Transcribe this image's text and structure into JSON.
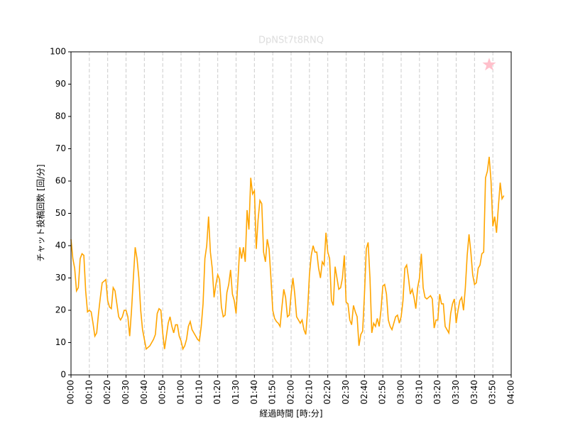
{
  "chart_data": {
    "type": "line",
    "title": "DpNSt7t8RNQ",
    "xlabel": "経過時間 [時:分]",
    "ylabel": "チャット投稿回数 [回/分]",
    "color": "orange",
    "grid": "x",
    "x": [
      0,
      1,
      2,
      3,
      4,
      5,
      6,
      7,
      8,
      9,
      10,
      11,
      12,
      13,
      14,
      15,
      16,
      17,
      18,
      19,
      20,
      21,
      22,
      23,
      24,
      25,
      26,
      27,
      28,
      29,
      30,
      31,
      32,
      33,
      34,
      35,
      36,
      37,
      38,
      39,
      40,
      41,
      42,
      43,
      44,
      45,
      46,
      47,
      48,
      49,
      50,
      51,
      52,
      53,
      54,
      55,
      56,
      57,
      58,
      59,
      60,
      61,
      62,
      63,
      64,
      65,
      66,
      67,
      68,
      69,
      70,
      71,
      72,
      73,
      74,
      75,
      76,
      77,
      78,
      79,
      80,
      81,
      82,
      83,
      84,
      85,
      86,
      87,
      88,
      89,
      90,
      91,
      92,
      93,
      94,
      95,
      96,
      97,
      98,
      99,
      100,
      101,
      102,
      103,
      104,
      105,
      106,
      107,
      108,
      109,
      110,
      111,
      112,
      113,
      114,
      115,
      116,
      117,
      118,
      119,
      120,
      121,
      122,
      123,
      124,
      125,
      126,
      127,
      128,
      129,
      130,
      131,
      132,
      133,
      134,
      135,
      136,
      137,
      138,
      139,
      140,
      141,
      142,
      143,
      144,
      145,
      146,
      147,
      148,
      149,
      150,
      151,
      152,
      153,
      154,
      155,
      156,
      157,
      158,
      159,
      160,
      161,
      162,
      163,
      164,
      165,
      166,
      167,
      168,
      169,
      170,
      171,
      172,
      173,
      174,
      175,
      176,
      177,
      178,
      179,
      180,
      181,
      182,
      183,
      184,
      185,
      186,
      187,
      188,
      189,
      190,
      191,
      192,
      193,
      194,
      195,
      196,
      197,
      198,
      199,
      200,
      201,
      202,
      203,
      204,
      205,
      206,
      207,
      208,
      209,
      210,
      211,
      212,
      213,
      214,
      215,
      216,
      217,
      218,
      219,
      220,
      221,
      222,
      223,
      224,
      225,
      226,
      227,
      228,
      229,
      230,
      231,
      232,
      233,
      234,
      235,
      236
    ],
    "values": [
      42,
      36,
      33,
      26,
      27,
      36,
      37.5,
      37,
      26,
      19.5,
      20,
      19.5,
      16,
      12,
      13,
      19,
      24,
      28.5,
      29,
      29.5,
      23,
      21,
      20.5,
      27,
      26,
      22,
      18,
      17,
      18,
      20,
      20,
      18,
      12,
      20,
      30,
      39.5,
      36,
      30,
      20,
      14,
      11,
      8,
      8.5,
      9,
      10,
      11,
      12.5,
      19,
      20.5,
      20,
      13,
      8,
      12,
      16,
      18,
      15,
      13,
      15.5,
      15.5,
      12,
      10.5,
      8,
      9,
      11,
      15,
      16.5,
      14,
      13,
      12,
      11,
      10.5,
      15,
      22,
      36,
      40,
      49,
      38,
      33,
      24,
      28,
      31,
      29.5,
      21,
      18,
      18.5,
      25.5,
      28,
      32.5,
      25,
      23,
      19,
      29,
      39.5,
      36,
      39.5,
      35,
      51,
      45,
      61,
      56,
      57,
      39,
      48,
      54,
      53,
      38,
      35,
      42,
      39,
      30,
      20,
      17.5,
      16.5,
      16,
      15,
      21,
      26.5,
      24,
      18,
      18.5,
      25,
      30,
      25,
      18,
      17,
      16,
      17,
      14,
      12.5,
      20,
      31,
      37,
      40,
      38,
      38,
      33,
      30,
      35,
      34,
      44,
      38,
      36,
      23,
      21.5,
      33.5,
      30,
      26.5,
      27,
      30,
      37,
      22.5,
      22,
      17,
      15.5,
      21.5,
      19.5,
      18,
      9,
      12.5,
      13.5,
      25,
      39,
      41,
      30,
      13,
      16,
      15,
      17.5,
      15,
      20,
      27.5,
      28,
      25,
      17,
      15,
      14,
      16,
      18,
      18.5,
      16,
      18,
      23,
      33,
      34,
      30,
      25,
      26.5,
      24,
      20.5,
      27,
      30,
      37.5,
      27,
      24,
      23.5,
      24,
      24.5,
      23.5,
      14.5,
      17,
      17,
      25,
      22,
      22,
      15,
      14,
      13,
      19,
      22,
      23.5,
      16,
      20,
      23,
      24,
      20,
      27,
      37,
      43.5,
      38,
      31,
      28,
      28.5,
      33,
      34,
      37.5,
      38,
      61,
      63,
      67.5,
      60,
      46,
      49,
      44,
      52,
      59.5,
      54.5,
      55.5
    ],
    "marker": {
      "x": 228,
      "y": 96,
      "color": "pink"
    },
    "xlim": [
      0,
      240
    ],
    "xticks": [
      {
        "value": 0,
        "label": "00:00"
      },
      {
        "value": 10,
        "label": "00:10"
      },
      {
        "value": 20,
        "label": "00:20"
      },
      {
        "value": 30,
        "label": "00:30"
      },
      {
        "value": 40,
        "label": "00:40"
      },
      {
        "value": 50,
        "label": "00:50"
      },
      {
        "value": 60,
        "label": "01:00"
      },
      {
        "value": 70,
        "label": "01:10"
      },
      {
        "value": 80,
        "label": "01:20"
      },
      {
        "value": 90,
        "label": "01:30"
      },
      {
        "value": 100,
        "label": "01:40"
      },
      {
        "value": 110,
        "label": "01:50"
      },
      {
        "value": 120,
        "label": "02:00"
      },
      {
        "value": 130,
        "label": "02:10"
      },
      {
        "value": 140,
        "label": "02:20"
      },
      {
        "value": 150,
        "label": "02:30"
      },
      {
        "value": 160,
        "label": "02:40"
      },
      {
        "value": 170,
        "label": "02:50"
      },
      {
        "value": 180,
        "label": "03:00"
      },
      {
        "value": 190,
        "label": "03:10"
      },
      {
        "value": 200,
        "label": "03:20"
      },
      {
        "value": 210,
        "label": "03:30"
      },
      {
        "value": 220,
        "label": "03:40"
      },
      {
        "value": 230,
        "label": "03:50"
      },
      {
        "value": 240,
        "label": "04:00"
      }
    ],
    "ylim": [
      0,
      100
    ],
    "yticks": [
      0,
      10,
      20,
      30,
      40,
      50,
      60,
      70,
      80,
      90,
      100
    ]
  }
}
